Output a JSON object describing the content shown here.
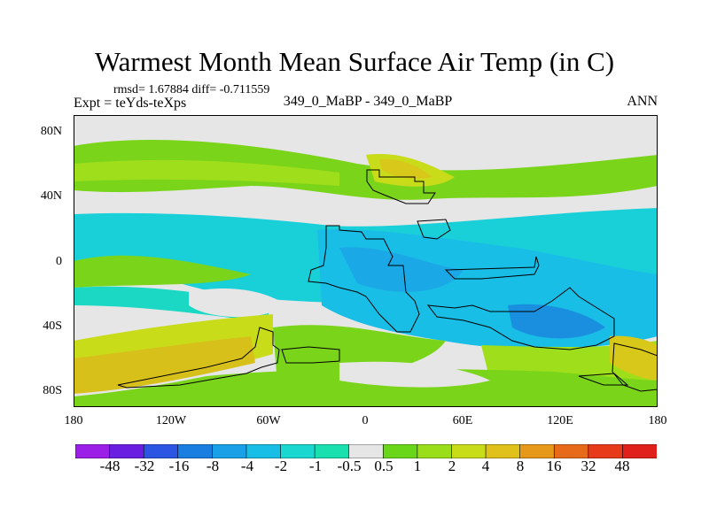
{
  "header": {
    "title": "Warmest Month Mean Surface Air Temp (in C)",
    "stats": "rmsd= 1.67884 diff= -0.711559",
    "expt": "Expt = teYds-teXps",
    "center_label": "349_0_MaBP - 349_0_MaBP",
    "right_label": "ANN"
  },
  "map": {
    "lat_ticks": [
      "80N",
      "40N",
      "0",
      "40S",
      "80S"
    ],
    "lon_ticks": [
      "180",
      "120W",
      "60W",
      "0",
      "60E",
      "120E",
      "180"
    ]
  },
  "colorbar": {
    "labels": [
      "-48",
      "-32",
      "-16",
      "-8",
      "-4",
      "-2",
      "-1",
      "-0.5",
      "0.5",
      "1",
      "2",
      "4",
      "8",
      "16",
      "32",
      "48"
    ],
    "colors": [
      "#9b1fe6",
      "#6a1fe0",
      "#2c55e4",
      "#1a7de0",
      "#1aa0e6",
      "#19bee6",
      "#1ad8d0",
      "#1ae0b0",
      "#e6e6e6",
      "#6ad61a",
      "#9ade1a",
      "#c8dc1a",
      "#e0c01a",
      "#e6981a",
      "#e66a1a",
      "#e63a1a",
      "#e0201a"
    ]
  }
}
